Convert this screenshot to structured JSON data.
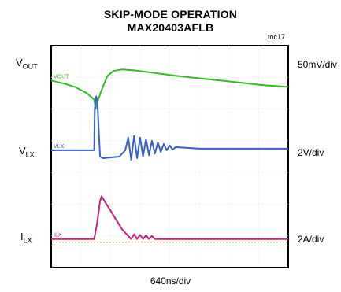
{
  "chart_data": {
    "type": "line",
    "title": "SKIP-MODE OPERATION",
    "subtitle": "MAX20403AFLB",
    "figure_id": "toc17",
    "xlabel": "640ns/div",
    "grid": true,
    "traces": [
      {
        "name": "VOUT",
        "axis_label_main": "V",
        "axis_label_sub": "OUT",
        "scale": "50mV/div",
        "in_plot_label": "VOUT",
        "color": "#33bb22",
        "points": [
          [
            0,
            -1.1
          ],
          [
            0.45,
            -1.2
          ],
          [
            0.8,
            -1.3
          ],
          [
            1.2,
            -1.5
          ],
          [
            1.45,
            -1.7
          ],
          [
            1.5,
            -2.0
          ],
          [
            1.55,
            -1.8
          ],
          [
            1.7,
            -1.4
          ],
          [
            1.9,
            -0.95
          ],
          [
            2.1,
            -0.8
          ],
          [
            2.4,
            -0.75
          ],
          [
            2.8,
            -0.78
          ],
          [
            3.4,
            -0.85
          ],
          [
            4.2,
            -0.95
          ],
          [
            5.2,
            -1.05
          ],
          [
            6.2,
            -1.15
          ],
          [
            7.2,
            -1.25
          ],
          [
            8.0,
            -1.3
          ]
        ]
      },
      {
        "name": "VLX",
        "axis_label_main": "V",
        "axis_label_sub": "LX",
        "scale": "2V/div",
        "in_plot_label": "VLX",
        "color": "#3a5fcd",
        "points": [
          [
            0,
            -3.3
          ],
          [
            1.45,
            -3.3
          ],
          [
            1.47,
            -2.0
          ],
          [
            1.52,
            -1.6
          ],
          [
            1.56,
            -1.75
          ],
          [
            1.6,
            -2.6
          ],
          [
            1.65,
            -3.5
          ],
          [
            1.75,
            -3.55
          ],
          [
            2.3,
            -3.5
          ],
          [
            2.5,
            -3.3
          ],
          [
            2.6,
            -2.9
          ],
          [
            2.7,
            -3.6
          ],
          [
            2.8,
            -2.85
          ],
          [
            2.9,
            -3.55
          ],
          [
            3.0,
            -2.9
          ],
          [
            3.1,
            -3.5
          ],
          [
            3.2,
            -2.95
          ],
          [
            3.3,
            -3.45
          ],
          [
            3.4,
            -3.0
          ],
          [
            3.5,
            -3.4
          ],
          [
            3.6,
            -3.05
          ],
          [
            3.7,
            -3.35
          ],
          [
            3.8,
            -3.1
          ],
          [
            3.9,
            -3.3
          ],
          [
            4.0,
            -3.15
          ],
          [
            4.1,
            -3.28
          ],
          [
            4.2,
            -3.2
          ],
          [
            5.0,
            -3.25
          ],
          [
            8.0,
            -3.25
          ]
        ]
      },
      {
        "name": "ILX",
        "axis_label_main": "I",
        "axis_label_sub": "LX",
        "scale": "2A/div",
        "in_plot_label": "ILX",
        "color": "#cc1f7f",
        "points": [
          [
            0,
            -6.1
          ],
          [
            1.45,
            -6.1
          ],
          [
            1.55,
            -5.6
          ],
          [
            1.65,
            -4.9
          ],
          [
            1.7,
            -4.75
          ],
          [
            2.4,
            -5.8
          ],
          [
            2.7,
            -6.1
          ],
          [
            2.8,
            -5.95
          ],
          [
            2.9,
            -6.1
          ],
          [
            3.0,
            -5.97
          ],
          [
            3.1,
            -6.1
          ],
          [
            3.2,
            -5.98
          ],
          [
            3.3,
            -6.1
          ],
          [
            3.4,
            -6.0
          ],
          [
            3.5,
            -6.1
          ],
          [
            8.0,
            -6.1
          ]
        ]
      }
    ],
    "baseline": {
      "y": -6.2,
      "color": "#e0a020"
    }
  }
}
